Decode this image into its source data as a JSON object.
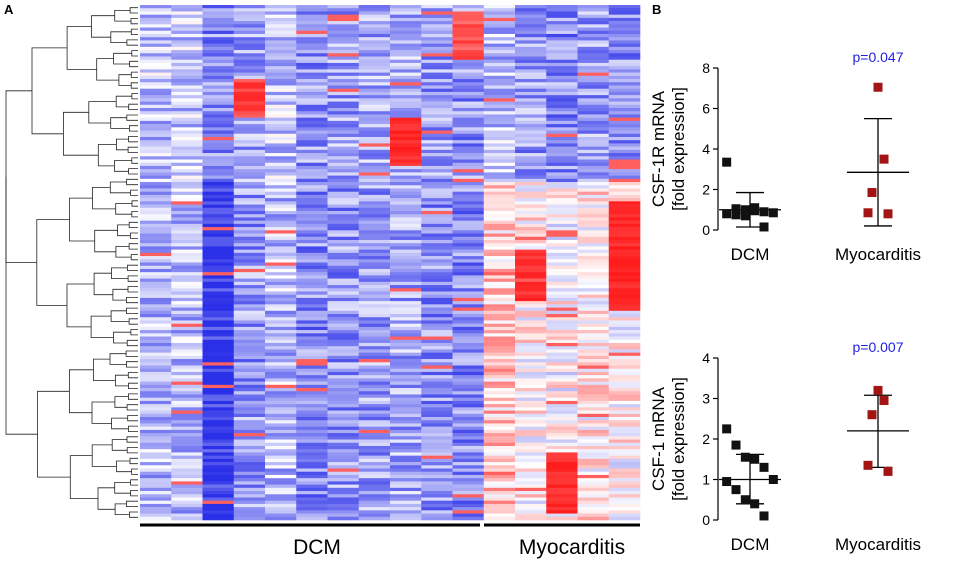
{
  "panel_a_label": "A",
  "panel_b_label": "B",
  "heatmap": {
    "group_labels": [
      "DCM",
      "Myocarditis"
    ],
    "dcm_columns": 11,
    "myocarditis_columns": 5,
    "colors": {
      "low": "#2a2fe8",
      "mid": "#ffffff",
      "high": "#ff1a1a"
    }
  },
  "chart_data": [
    {
      "type": "scatter",
      "title": "CSF-1R",
      "ylabel_line1": "CSF-1R mRNA",
      "ylabel_line2": "[fold expression]",
      "categories": [
        "DCM",
        "Myocarditis"
      ],
      "ylim": [
        0,
        8
      ],
      "yticks": [
        0,
        2,
        4,
        6,
        8
      ],
      "annotation": "p=0.047",
      "annotation_color": "#1f1fe0",
      "series": [
        {
          "name": "DCM",
          "color": "#111111",
          "values": [
            3.35,
            1.05,
            1.0,
            0.95,
            0.9,
            0.85,
            0.8,
            0.75,
            0.7,
            1.1,
            0.15
          ],
          "mean": 1.0,
          "sd_low": 0.15,
          "sd_high": 1.85
        },
        {
          "name": "Myocarditis",
          "color": "#a31515",
          "values": [
            7.05,
            3.5,
            1.85,
            0.85,
            0.8
          ],
          "mean": 2.85,
          "sd_low": 0.2,
          "sd_high": 5.5
        }
      ]
    },
    {
      "type": "scatter",
      "title": "CSF-1",
      "ylabel_line1": "CSF-1 mRNA",
      "ylabel_line2": "[fold expression]",
      "categories": [
        "DCM",
        "Myocarditis"
      ],
      "ylim": [
        0,
        4
      ],
      "yticks": [
        0,
        1,
        2,
        3,
        4
      ],
      "annotation": "p=0.007",
      "annotation_color": "#1f1fe0",
      "series": [
        {
          "name": "DCM",
          "color": "#111111",
          "values": [
            2.25,
            1.85,
            1.55,
            1.5,
            1.3,
            1.0,
            0.95,
            0.75,
            0.5,
            0.4,
            0.1
          ],
          "mean": 1.0,
          "sd_low": 0.4,
          "sd_high": 1.62
        },
        {
          "name": "Myocarditis",
          "color": "#a31515",
          "values": [
            3.2,
            2.95,
            2.6,
            1.35,
            1.2
          ],
          "mean": 2.2,
          "sd_low": 1.3,
          "sd_high": 3.08
        }
      ]
    }
  ]
}
